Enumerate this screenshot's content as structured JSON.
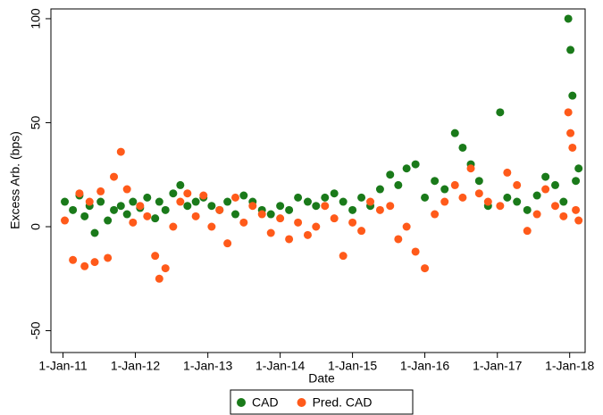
{
  "chart_data": {
    "type": "scatter",
    "x_label": "Date",
    "y_label": "Excess Arb. (bps)",
    "x": [
      "2011-01-10",
      "2011-02-20",
      "2011-03-25",
      "2011-04-20",
      "2011-05-15",
      "2011-06-10",
      "2011-07-10",
      "2011-08-15",
      "2011-09-15",
      "2011-10-20",
      "2011-11-20",
      "2011-12-20",
      "2012-01-25",
      "2012-03-01",
      "2012-04-10",
      "2012-05-01",
      "2012-06-01",
      "2012-07-10",
      "2012-08-15",
      "2012-09-20",
      "2012-11-01",
      "2012-12-10",
      "2013-01-20",
      "2013-03-01",
      "2013-04-10",
      "2013-05-20",
      "2013-07-01",
      "2013-08-15",
      "2013-10-01",
      "2013-11-15",
      "2014-01-01",
      "2014-02-15",
      "2014-04-01",
      "2014-05-20",
      "2014-07-01",
      "2014-08-15",
      "2014-10-01",
      "2014-11-15",
      "2015-01-01",
      "2015-02-15",
      "2015-04-01",
      "2015-05-20",
      "2015-07-10",
      "2015-08-20",
      "2015-10-01",
      "2015-11-15",
      "2016-01-01",
      "2016-02-20",
      "2016-04-10",
      "2016-06-01",
      "2016-07-10",
      "2016-08-20",
      "2016-10-01",
      "2016-11-15",
      "2017-01-15",
      "2017-02-20",
      "2017-04-10",
      "2017-06-01",
      "2017-07-20",
      "2017-09-01",
      "2017-10-20",
      "2017-12-01",
      "2017-12-25",
      "2018-01-05",
      "2018-01-15",
      "2018-02-01",
      "2018-02-15"
    ],
    "series": [
      {
        "name": "CAD",
        "color": "#1a7a1a",
        "values": [
          12,
          8,
          15,
          5,
          10,
          -3,
          12,
          3,
          8,
          10,
          6,
          12,
          9,
          14,
          4,
          12,
          8,
          16,
          20,
          10,
          12,
          14,
          10,
          8,
          12,
          6,
          15,
          12,
          8,
          6,
          10,
          8,
          14,
          12,
          10,
          14,
          16,
          12,
          8,
          14,
          10,
          18,
          25,
          20,
          28,
          30,
          14,
          22,
          18,
          45,
          38,
          30,
          22,
          10,
          55,
          14,
          12,
          8,
          15,
          24,
          20,
          12,
          100,
          85,
          63,
          22,
          28
        ]
      },
      {
        "name": "Pred. CAD",
        "color": "#ff5a1a",
        "values": [
          3,
          -16,
          16,
          -19,
          12,
          -17,
          17,
          -15,
          24,
          36,
          18,
          2,
          10,
          5,
          -14,
          -25,
          -20,
          0,
          12,
          16,
          5,
          15,
          0,
          8,
          -8,
          14,
          2,
          10,
          6,
          -3,
          4,
          -6,
          2,
          -4,
          0,
          10,
          4,
          -14,
          2,
          -2,
          12,
          8,
          10,
          -6,
          0,
          -12,
          -20,
          6,
          12,
          20,
          14,
          28,
          16,
          12,
          10,
          26,
          20,
          -2,
          6,
          18,
          10,
          5,
          55,
          45,
          38,
          8,
          3
        ]
      }
    ],
    "xlim": [
      "2010-11-01",
      "2018-03-20"
    ],
    "xticks": [
      {
        "value": "2011-01-01",
        "label": "1-Jan-11"
      },
      {
        "value": "2012-01-01",
        "label": "1-Jan-12"
      },
      {
        "value": "2013-01-01",
        "label": "1-Jan-13"
      },
      {
        "value": "2014-01-01",
        "label": "1-Jan-14"
      },
      {
        "value": "2015-01-01",
        "label": "1-Jan-15"
      },
      {
        "value": "2016-01-01",
        "label": "1-Jan-16"
      },
      {
        "value": "2017-01-01",
        "label": "1-Jan-17"
      },
      {
        "value": "2018-01-01",
        "label": "1-Jan-18"
      }
    ],
    "ylim": [
      -60.5,
      104.7
    ],
    "yticks": [
      -50,
      0,
      50,
      100
    ],
    "legend": "bottom"
  }
}
